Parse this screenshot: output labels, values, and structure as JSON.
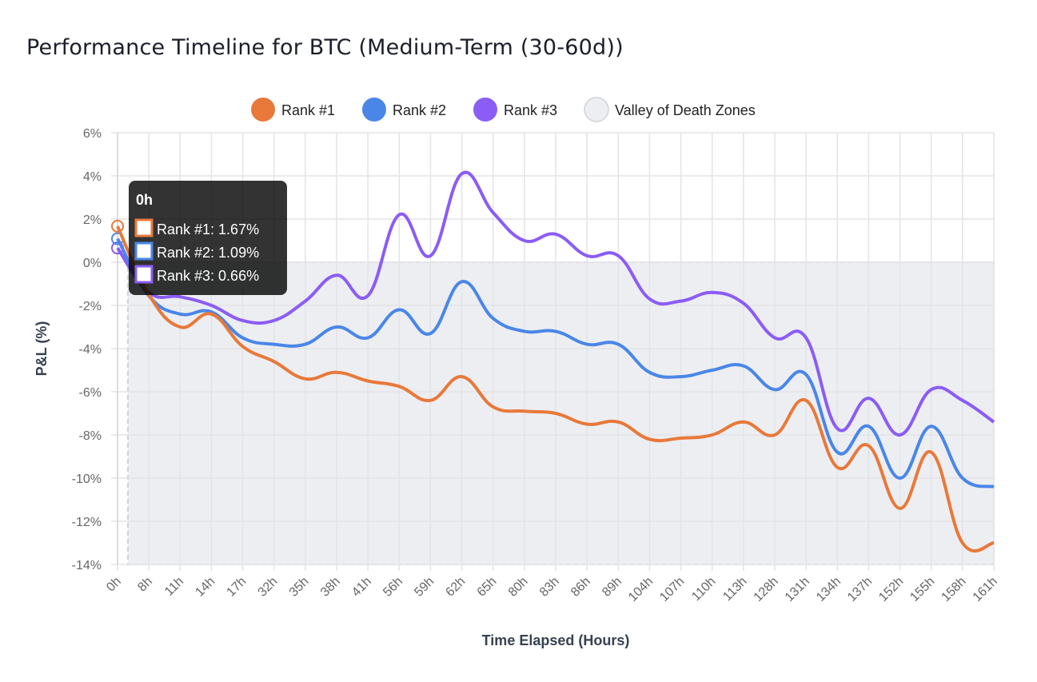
{
  "chart_data": {
    "type": "line",
    "title": "Performance Timeline for BTC (Medium-Term (30-60d))",
    "xlabel": "Time Elapsed (Hours)",
    "ylabel": "P&L (%)",
    "ylim": [
      -14,
      6
    ],
    "yticks": [
      "6%",
      "4%",
      "2%",
      "0%",
      "-2%",
      "-4%",
      "-6%",
      "-8%",
      "-10%",
      "-12%",
      "-14%"
    ],
    "ytick_values": [
      6,
      4,
      2,
      0,
      -2,
      -4,
      -6,
      -8,
      -10,
      -12,
      -14
    ],
    "grid": true,
    "legend_position": "top",
    "categories": [
      "0h",
      "8h",
      "11h",
      "14h",
      "17h",
      "32h",
      "35h",
      "38h",
      "41h",
      "56h",
      "59h",
      "62h",
      "65h",
      "80h",
      "83h",
      "86h",
      "89h",
      "104h",
      "107h",
      "110h",
      "113h",
      "128h",
      "131h",
      "134h",
      "137h",
      "152h",
      "155h",
      "158h",
      "161h"
    ],
    "series": [
      {
        "name": "Rank #1",
        "color": "#e8793a",
        "values": [
          1.67,
          -1.5,
          -3.0,
          -2.4,
          -3.9,
          -4.6,
          -5.4,
          -5.1,
          -5.5,
          -5.75,
          -6.4,
          -5.3,
          -6.7,
          -6.9,
          -7.0,
          -7.5,
          -7.4,
          -8.2,
          -8.15,
          -8.0,
          -7.4,
          -8.0,
          -6.4,
          -9.5,
          -8.5,
          -11.4,
          -8.8,
          -13.0,
          -13.0
        ]
      },
      {
        "name": "Rank #2",
        "color": "#4a86e8",
        "values": [
          1.09,
          -1.55,
          -2.4,
          -2.3,
          -3.5,
          -3.8,
          -3.8,
          -3.0,
          -3.5,
          -2.2,
          -3.3,
          -0.9,
          -2.6,
          -3.2,
          -3.2,
          -3.8,
          -3.8,
          -5.1,
          -5.3,
          -5.0,
          -4.8,
          -5.9,
          -5.2,
          -8.8,
          -7.6,
          -10.0,
          -7.6,
          -10.0,
          -10.4
        ]
      },
      {
        "name": "Rank #3",
        "color": "#8b5cf6",
        "values": [
          0.66,
          -1.4,
          -1.6,
          -2.0,
          -2.7,
          -2.7,
          -1.8,
          -0.6,
          -1.55,
          2.2,
          0.3,
          4.1,
          2.3,
          1.0,
          1.3,
          0.3,
          0.3,
          -1.7,
          -1.8,
          -1.4,
          -1.9,
          -3.5,
          -3.5,
          -7.7,
          -6.3,
          -8.0,
          -5.9,
          -6.4,
          -7.4
        ]
      }
    ],
    "zones": [
      {
        "name": "Valley of Death Zones",
        "y_range": [
          -14,
          0
        ],
        "color": "#eceef1"
      }
    ],
    "legend": [
      "Rank #1",
      "Rank #2",
      "Rank #3",
      "Valley of Death Zones"
    ],
    "tooltip": {
      "title": "0h",
      "lines": [
        "Rank #1: 1.67%",
        "Rank #2: 1.09%",
        "Rank #3: 0.66%"
      ]
    }
  }
}
